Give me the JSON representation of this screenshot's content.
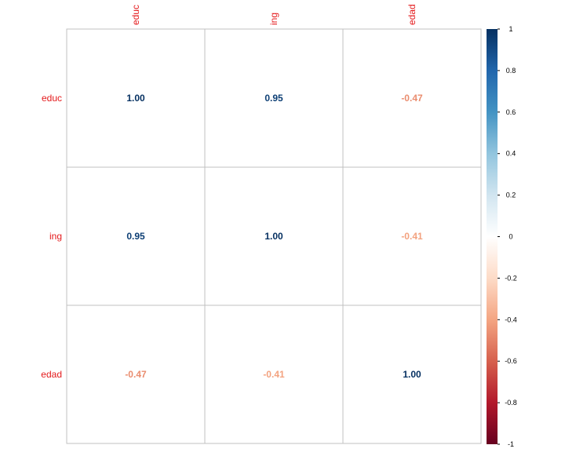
{
  "chart_data": {
    "type": "heatmap",
    "variables": [
      "educ",
      "ing",
      "edad"
    ],
    "matrix": [
      [
        1.0,
        0.95,
        -0.47
      ],
      [
        0.95,
        1.0,
        -0.41
      ],
      [
        -0.47,
        -0.41,
        1.0
      ]
    ],
    "cell_labels": [
      [
        "1.00",
        "0.95",
        "-0.47"
      ],
      [
        "0.95",
        "1.00",
        "-0.41"
      ],
      [
        "-0.47",
        "-0.41",
        "1.00"
      ]
    ],
    "colorbar": {
      "range": [
        -1,
        1
      ],
      "ticks": [
        "1",
        "0.8",
        "0.6",
        "0.4",
        "0.2",
        "0",
        "-0.2",
        "-0.4",
        "-0.6",
        "-0.8",
        "-1"
      ],
      "placement": "right"
    },
    "colors": {
      "label": "#e41a1c",
      "grid": "#c0c0c0",
      "strong_negative": "#67001f",
      "neutral": "#ffffff",
      "strong_positive": "#053061"
    }
  }
}
